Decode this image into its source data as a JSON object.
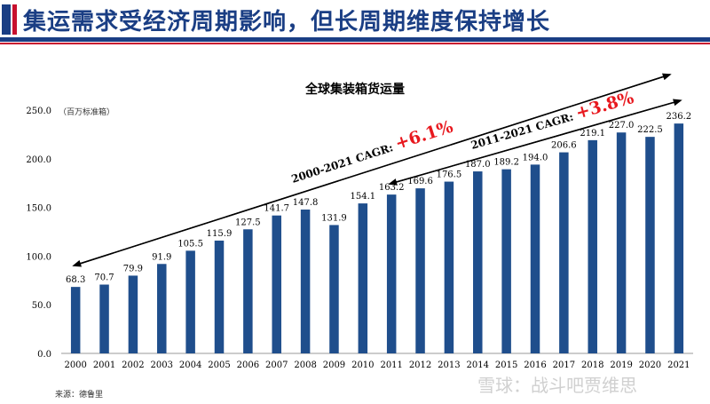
{
  "header": {
    "title": "集运需求受经济周期影响，但长周期维度保持增长"
  },
  "footer": {
    "source": "来源：德鲁里",
    "watermark": "雪球：战斗吧贾维思"
  },
  "colors": {
    "bar": "#1f4e8c",
    "accent_red": "#e8181e",
    "header_blue": "#1a3e84"
  },
  "chart_data": {
    "type": "bar",
    "title": "全球集装箱货运量",
    "unit": "（百万标准箱）",
    "categories": [
      "2000",
      "2001",
      "2002",
      "2003",
      "2004",
      "2005",
      "2006",
      "2007",
      "2008",
      "2009",
      "2010",
      "2011",
      "2012",
      "2013",
      "2014",
      "2015",
      "2016",
      "2017",
      "2018",
      "2019",
      "2020",
      "2021"
    ],
    "values": [
      68.3,
      70.7,
      79.9,
      91.9,
      105.5,
      115.9,
      127.5,
      141.7,
      147.8,
      131.9,
      154.1,
      163.2,
      169.6,
      176.5,
      187.0,
      189.2,
      194.0,
      206.6,
      219.1,
      227.0,
      222.5,
      236.2
    ],
    "data_labels": [
      "68.3",
      "70.7",
      "79.9",
      "91.9",
      "105.5",
      "115.9",
      "127.5",
      "141.7",
      "147.8",
      "131.9",
      "154.1",
      "163.2",
      "169.6",
      "176.5",
      "187.0",
      "189.2",
      "194.0",
      "206.6",
      "219.1",
      "227.0",
      "222.5",
      "236.2"
    ],
    "ylim": [
      0,
      250
    ],
    "yticks": [
      "0.0",
      "50.0",
      "100.0",
      "150.0",
      "200.0",
      "250.0"
    ],
    "grid": false,
    "annotations": [
      {
        "label": "2000-2021 CAGR: ",
        "value": "+6.1%",
        "from": "2000",
        "to": "2021"
      },
      {
        "label": "2011-2021 CAGR: ",
        "value": "+3.8%",
        "from": "2011",
        "to": "2021"
      }
    ]
  }
}
